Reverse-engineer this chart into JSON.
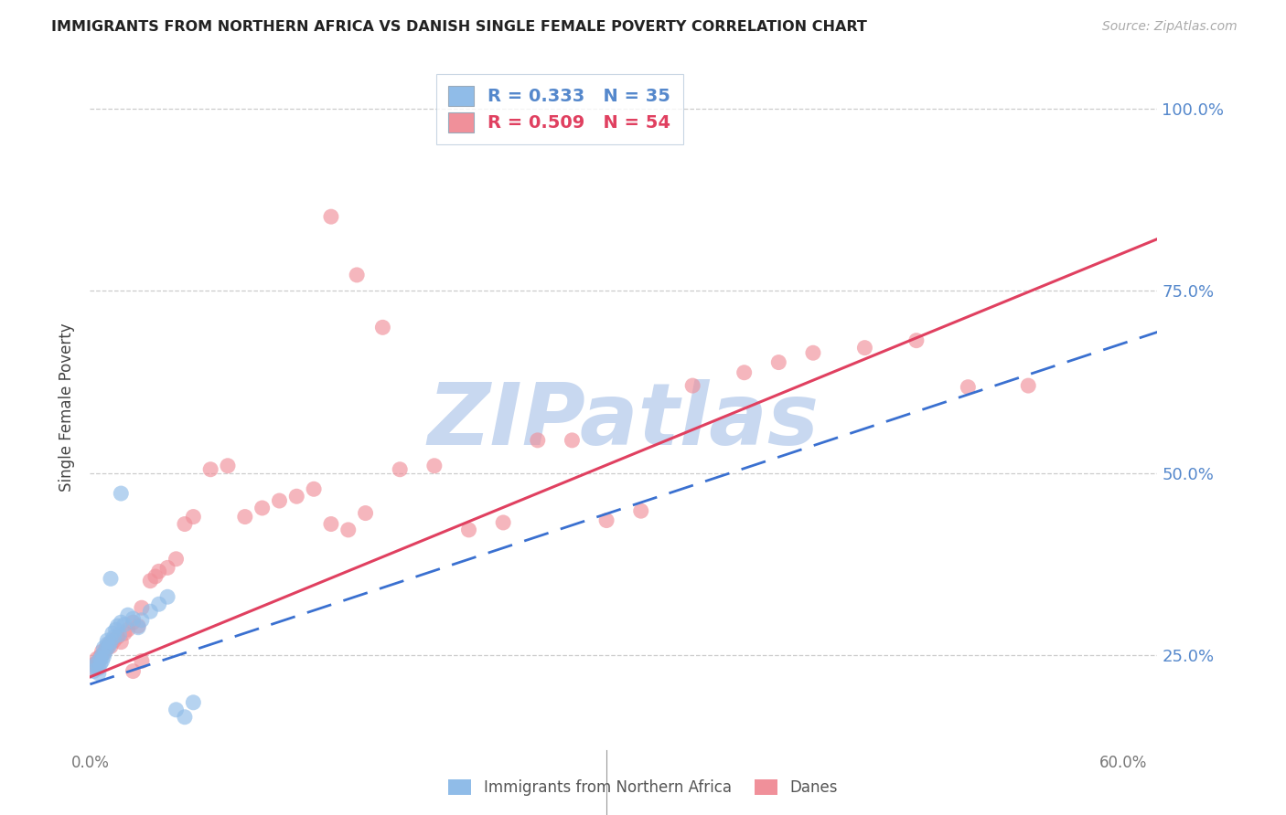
{
  "title": "IMMIGRANTS FROM NORTHERN AFRICA VS DANISH SINGLE FEMALE POVERTY CORRELATION CHART",
  "source": "Source: ZipAtlas.com",
  "ylabel": "Single Female Poverty",
  "xlim": [
    0.0,
    0.62
  ],
  "ylim": [
    0.12,
    1.06
  ],
  "ytick_positions": [
    0.25,
    0.5,
    0.75,
    1.0
  ],
  "ytick_labels": [
    "25.0%",
    "50.0%",
    "75.0%",
    "100.0%"
  ],
  "xtick_positions": [
    0.0,
    0.1,
    0.2,
    0.3,
    0.4,
    0.5,
    0.6
  ],
  "xtick_labels": [
    "0.0%",
    "",
    "",
    "",
    "",
    "",
    "60.0%"
  ],
  "blue_color": "#90bce8",
  "pink_color": "#f0909a",
  "line_blue_color": "#3a70d0",
  "line_pink_color": "#e04060",
  "watermark": "ZIPatlas",
  "watermark_color": "#c8d8f0",
  "legend_label1": "R = 0.333   N = 35",
  "legend_label2": "R = 0.509   N = 54",
  "bottom_label1": "Immigrants from Northern Africa",
  "bottom_label2": "Danes"
}
